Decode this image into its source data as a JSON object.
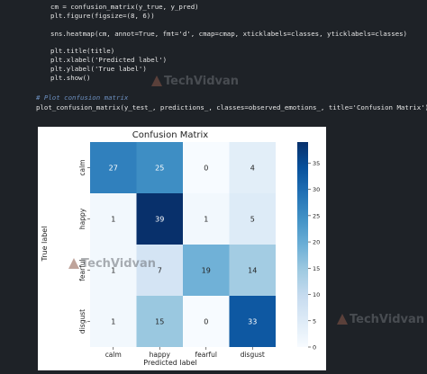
{
  "code": {
    "lines": [
      "cm = confusion_matrix(y_true, y_pred)",
      "plt.figure(figsize=(8, 6))",
      "sns.heatmap(cm, annot=True, fmt='d', cmap=cmap, xticklabels=classes, yticklabels=classes)",
      "plt.title(title)",
      "plt.xlabel('Predicted label')",
      "plt.ylabel('True label')",
      "plt.show()"
    ],
    "comment": "# Plot confusion matrix",
    "call": "plot_confusion_matrix(y_test_, predictions_, classes=observed_emotions_, title='Confusion Matrix')"
  },
  "watermark_text": "TechVidvan",
  "chart_data": {
    "type": "heatmap",
    "title": "Confusion Matrix",
    "xlabel": "Predicted label",
    "ylabel": "True label",
    "classes": [
      "calm",
      "happy",
      "fearful",
      "disgust"
    ],
    "matrix": [
      [
        27,
        25,
        0,
        4
      ],
      [
        1,
        39,
        1,
        5
      ],
      [
        1,
        7,
        19,
        14
      ],
      [
        1,
        15,
        0,
        33
      ]
    ],
    "colormap": "Blues",
    "colorbar_ticks": [
      0,
      5,
      10,
      15,
      20,
      25,
      30,
      35
    ],
    "vmin": 0,
    "vmax": 39
  }
}
